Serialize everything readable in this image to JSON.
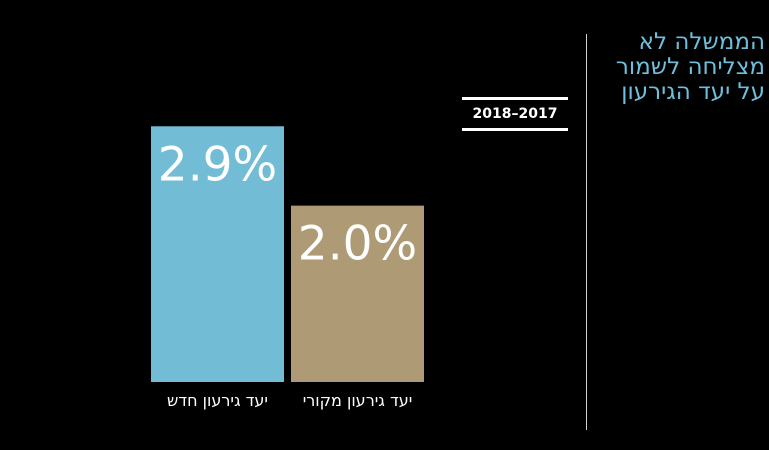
{
  "headline": {
    "line1": "הממשלה לא",
    "line2": "מצליחה לשמור",
    "line3": "על יעד הגירעון"
  },
  "period_label": "2018–2017",
  "colors": {
    "background": "#000000",
    "headline": "#6fbfdc",
    "new_target_bar": "#72bcd6",
    "original_target_bar": "#ae9a74"
  },
  "chart_data": {
    "type": "bar",
    "categories": [
      "יעד גירעון חדש",
      "יעד גירעון מקורי"
    ],
    "values": [
      2.9,
      2.0
    ],
    "data_labels": [
      "2.9%",
      "2.0%"
    ],
    "unit": "%",
    "ylim": [
      0,
      3.3
    ],
    "grid": false,
    "legend": "none"
  }
}
